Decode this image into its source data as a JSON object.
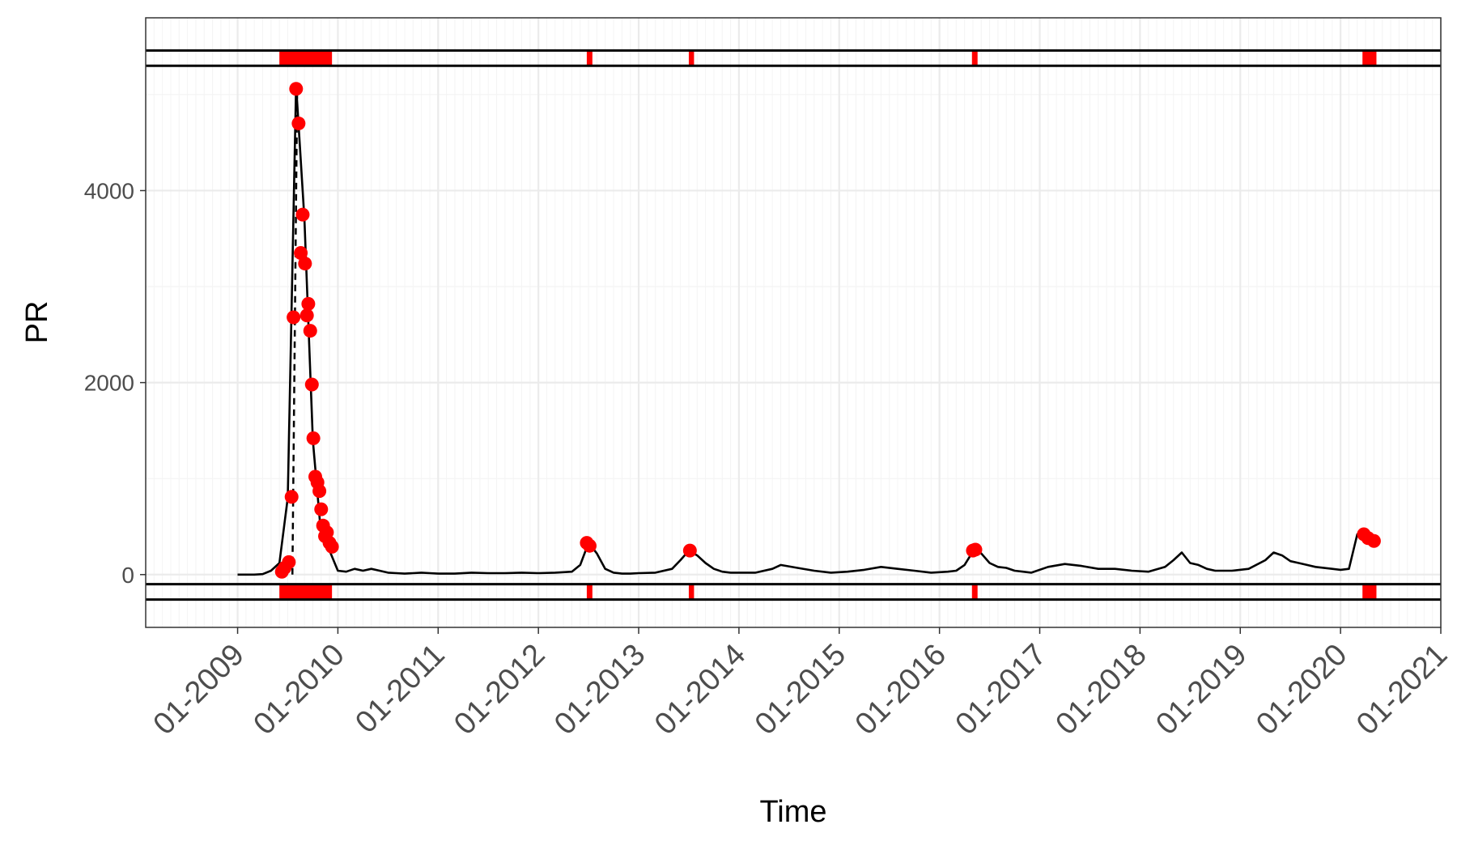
{
  "chart_data": {
    "type": "line",
    "title": "",
    "xlabel": "Time",
    "ylabel": "PR",
    "xlim": [
      "2008-02",
      "2021-01"
    ],
    "ylim": [
      -550,
      5800
    ],
    "grid": true,
    "legend": "none",
    "y_ticks": [
      0,
      2000,
      4000
    ],
    "y_tick_labels": [
      "0",
      "2000",
      "4000"
    ],
    "x_ticks": [
      "2009-01",
      "2010-01",
      "2011-01",
      "2012-01",
      "2013-01",
      "2014-01",
      "2015-01",
      "2016-01",
      "2017-01",
      "2018-01",
      "2019-01",
      "2020-01",
      "2021-01"
    ],
    "x_tick_labels": [
      "01-2009",
      "01-2010",
      "01-2011",
      "01-2012",
      "01-2013",
      "01-2014",
      "01-2015",
      "01-2016",
      "01-2017",
      "01-2018",
      "01-2019",
      "01-2020",
      "01-2021"
    ],
    "colors": {
      "series": "#000000",
      "outlier": "#ff0000",
      "grid_major": "#ebebeb",
      "grid_minor": "#f4f4f4",
      "panel_border": "#333333",
      "guide": "#000000",
      "dashed": "#000000"
    },
    "series": [
      {
        "x": [
          "2009-01",
          "2009-02",
          "2009-03",
          "2009-04",
          "2009-05",
          "2009-06",
          "2009-07",
          "2009-08",
          "2009-09",
          "2009-10",
          "2009-11",
          "2009-12",
          "2010-01",
          "2010-02",
          "2010-03",
          "2010-04",
          "2010-05",
          "2010-06",
          "2010-07",
          "2010-08",
          "2010-09",
          "2010-10",
          "2010-11",
          "2010-12",
          "2011-01",
          "2011-03",
          "2011-05",
          "2011-07",
          "2011-09",
          "2011-11",
          "2012-01",
          "2012-03",
          "2012-05",
          "2012-06",
          "2012-07",
          "2012-08",
          "2012-09",
          "2012-10",
          "2012-11",
          "2012-12",
          "2013-01",
          "2013-03",
          "2013-05",
          "2013-06",
          "2013-07",
          "2013-08",
          "2013-09",
          "2013-10",
          "2013-11",
          "2013-12",
          "2014-01",
          "2014-03",
          "2014-05",
          "2014-06",
          "2014-08",
          "2014-10",
          "2014-12",
          "2015-02",
          "2015-04",
          "2015-06",
          "2015-08",
          "2015-10",
          "2015-12",
          "2016-02",
          "2016-03",
          "2016-04",
          "2016-05",
          "2016-06",
          "2016-07",
          "2016-08",
          "2016-09",
          "2016-10",
          "2016-11",
          "2016-12",
          "2017-02",
          "2017-04",
          "2017-06",
          "2017-08",
          "2017-10",
          "2017-12",
          "2018-02",
          "2018-04",
          "2018-05",
          "2018-06",
          "2018-07",
          "2018-08",
          "2018-09",
          "2018-10",
          "2018-12",
          "2019-02",
          "2019-04",
          "2019-05",
          "2019-06",
          "2019-07",
          "2019-08",
          "2019-09",
          "2019-10",
          "2019-12",
          "2020-01",
          "2020-02",
          "2020-03",
          "2020-04",
          "2020-05"
        ],
        "y": [
          0,
          0,
          0,
          5,
          40,
          120,
          800,
          5100,
          3700,
          1400,
          400,
          250,
          40,
          30,
          60,
          40,
          60,
          40,
          20,
          15,
          10,
          15,
          20,
          15,
          10,
          10,
          20,
          15,
          15,
          20,
          15,
          20,
          30,
          100,
          330,
          220,
          60,
          20,
          10,
          10,
          15,
          20,
          60,
          150,
          250,
          200,
          120,
          60,
          30,
          20,
          20,
          20,
          60,
          100,
          70,
          40,
          20,
          30,
          50,
          80,
          60,
          40,
          20,
          30,
          40,
          100,
          240,
          220,
          120,
          80,
          70,
          40,
          30,
          20,
          80,
          110,
          90,
          60,
          60,
          40,
          30,
          80,
          150,
          230,
          120,
          100,
          60,
          40,
          40,
          60,
          150,
          230,
          200,
          140,
          120,
          100,
          80,
          60,
          50,
          60,
          420,
          400,
          350
        ]
      }
    ],
    "outlier_points": {
      "x": [
        "2009-06-10",
        "2009-06-20",
        "2009-07-05",
        "2009-07-15",
        "2009-07-22",
        "2009-08-01",
        "2009-08-10",
        "2009-08-18",
        "2009-08-25",
        "2009-09-03",
        "2009-09-10",
        "2009-09-15",
        "2009-09-22",
        "2009-09-28",
        "2009-10-03",
        "2009-10-10",
        "2009-10-18",
        "2009-10-25",
        "2009-11-01",
        "2009-11-08",
        "2009-11-15",
        "2009-11-22",
        "2009-12-01",
        "2009-12-10",
        "2012-06-25",
        "2012-07-05",
        "2013-07-05",
        "2016-05-01",
        "2016-05-10",
        "2020-03-25",
        "2020-04-10",
        "2020-05-01"
      ],
      "y": [
        30,
        70,
        130,
        810,
        2680,
        5060,
        4700,
        3350,
        3750,
        3240,
        2700,
        2820,
        2540,
        1980,
        1420,
        1020,
        960,
        870,
        680,
        510,
        400,
        440,
        330,
        290,
        330,
        300,
        250,
        250,
        260,
        420,
        380,
        350
      ]
    },
    "dashed_segment": {
      "x": [
        "2009-07-18",
        "2009-08-05"
      ],
      "y": [
        0,
        5100
      ]
    },
    "top_band": {
      "y": [
        5460,
        5300
      ],
      "markers": [
        {
          "start": "2009-06-01",
          "end": "2009-12-10"
        },
        {
          "start": "2012-06-25",
          "end": "2012-07-15"
        },
        {
          "start": "2013-07-01",
          "end": "2013-07-20"
        },
        {
          "start": "2016-04-28",
          "end": "2016-05-18"
        },
        {
          "start": "2020-03-20",
          "end": "2020-05-10"
        }
      ]
    },
    "bottom_band": {
      "y": [
        -100,
        -260
      ],
      "markers": [
        {
          "start": "2009-06-01",
          "end": "2009-12-10"
        },
        {
          "start": "2012-06-25",
          "end": "2012-07-15"
        },
        {
          "start": "2013-07-01",
          "end": "2013-07-20"
        },
        {
          "start": "2016-04-28",
          "end": "2016-05-18"
        },
        {
          "start": "2020-03-20",
          "end": "2020-05-10"
        }
      ]
    }
  }
}
